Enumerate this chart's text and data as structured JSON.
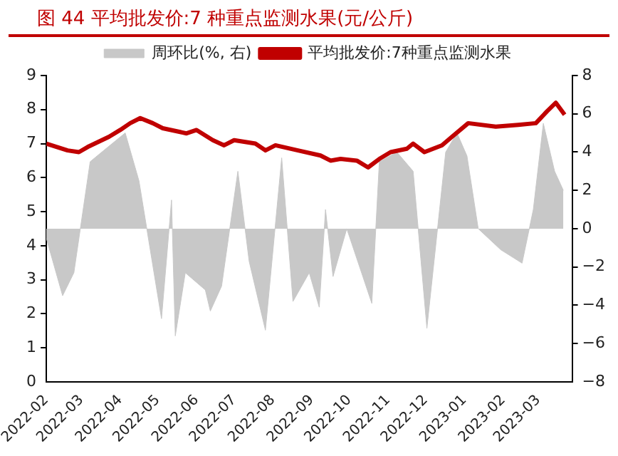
{
  "chart_data": {
    "type": "line",
    "title": "图 44  平均批发价:7 种重点监测水果(元/公斤)",
    "xlim": [
      "2022-02-01",
      "2023-03-28"
    ],
    "xticks": [
      {
        "value": "2022-02-01",
        "label": "2022-02"
      },
      {
        "value": "2022-03-01",
        "label": "2022-03"
      },
      {
        "value": "2022-04-01",
        "label": "2022-04"
      },
      {
        "value": "2022-05-01",
        "label": "2022-05"
      },
      {
        "value": "2022-06-01",
        "label": "2022-06"
      },
      {
        "value": "2022-07-01",
        "label": "2022-07"
      },
      {
        "value": "2022-08-01",
        "label": "2022-08"
      },
      {
        "value": "2022-09-01",
        "label": "2022-09"
      },
      {
        "value": "2022-10-01",
        "label": "2022-10"
      },
      {
        "value": "2022-11-01",
        "label": "2022-11"
      },
      {
        "value": "2022-12-01",
        "label": "2022-12"
      },
      {
        "value": "2023-01-01",
        "label": "2023-01"
      },
      {
        "value": "2023-02-01",
        "label": "2023-02"
      },
      {
        "value": "2023-03-01",
        "label": "2023-03"
      }
    ],
    "ylim": [
      0,
      9
    ],
    "yticks": [
      0,
      1,
      2,
      3,
      4,
      5,
      6,
      7,
      8,
      9
    ],
    "y2lim": [
      -8,
      8
    ],
    "y2ticks": [
      -8,
      -6,
      -4,
      -2,
      0,
      2,
      4,
      6,
      8
    ],
    "grid": false,
    "legend": "top",
    "marker": "none",
    "line_style": "solid",
    "series": [
      {
        "name": "周环比(%, 右)",
        "type": "area",
        "axis": "y2",
        "color": "#c8c8c8",
        "x": [
          "2022-02-01",
          "2022-02-14",
          "2022-02-23",
          "2022-03-08",
          "2022-03-21",
          "2022-04-05",
          "2022-04-16",
          "2022-05-04",
          "2022-05-12",
          "2022-05-15",
          "2022-05-23",
          "2022-06-08",
          "2022-06-12",
          "2022-06-21",
          "2022-07-04",
          "2022-07-13",
          "2022-07-26",
          "2022-08-08",
          "2022-08-17",
          "2022-08-30",
          "2022-09-07",
          "2022-09-12",
          "2022-09-18",
          "2022-09-29",
          "2022-10-19",
          "2022-10-25",
          "2022-11-08",
          "2022-11-21",
          "2022-12-02",
          "2022-12-17",
          "2022-12-26",
          "2023-01-03",
          "2023-01-12",
          "2023-01-30",
          "2023-02-16",
          "2023-02-25",
          "2023-03-05",
          "2023-03-14",
          "2023-03-21"
        ],
        "values": [
          -0.5,
          -3.5,
          -2.3,
          3.5,
          4.2,
          5.0,
          2.5,
          -4.7,
          1.5,
          -5.6,
          -2.3,
          -3.2,
          -4.3,
          -3.0,
          3.0,
          -1.7,
          -5.3,
          3.7,
          -3.8,
          -2.3,
          -4.1,
          1.0,
          -2.5,
          0,
          -3.9,
          3.5,
          4.0,
          3.0,
          -5.2,
          4.0,
          5.0,
          3.8,
          0,
          -1.1,
          -1.8,
          1.0,
          5.5,
          3.0,
          2.0
        ]
      },
      {
        "name": "平均批发价:7种重点监测水果",
        "type": "line",
        "color": "#c00000",
        "x": [
          "2022-02-01",
          "2022-02-18",
          "2022-02-27",
          "2022-03-06",
          "2022-03-23",
          "2022-04-01",
          "2022-04-09",
          "2022-04-17",
          "2022-04-27",
          "2022-05-05",
          "2022-05-24",
          "2022-06-01",
          "2022-06-14",
          "2022-06-23",
          "2022-07-01",
          "2022-07-18",
          "2022-07-26",
          "2022-08-03",
          "2022-08-21",
          "2022-09-08",
          "2022-09-16",
          "2022-09-24",
          "2022-10-07",
          "2022-10-16",
          "2022-10-25",
          "2022-11-03",
          "2022-11-16",
          "2022-11-21",
          "2022-11-30",
          "2022-12-14",
          "2022-12-22",
          "2023-01-04",
          "2023-01-26",
          "2023-02-13",
          "2023-02-27",
          "2023-03-08",
          "2023-03-15",
          "2023-03-22"
        ],
        "values": [
          7.0,
          6.8,
          6.75,
          6.9,
          7.2,
          7.4,
          7.6,
          7.75,
          7.6,
          7.45,
          7.3,
          7.4,
          7.1,
          6.95,
          7.1,
          7.0,
          6.8,
          6.95,
          6.8,
          6.65,
          6.5,
          6.55,
          6.5,
          6.3,
          6.55,
          6.75,
          6.85,
          7.0,
          6.75,
          6.95,
          7.2,
          7.6,
          7.5,
          7.55,
          7.6,
          7.95,
          8.2,
          7.85
        ]
      }
    ]
  }
}
